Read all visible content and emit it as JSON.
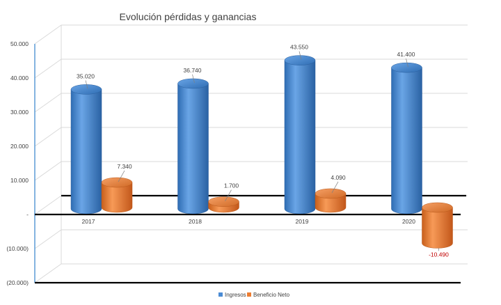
{
  "chart_data": {
    "type": "bar",
    "title": "Evolución pérdidas y ganancias",
    "categories": [
      "2017",
      "2018",
      "2019",
      "2020"
    ],
    "series": [
      {
        "name": "Ingresos",
        "values": [
          35020,
          36740,
          43550,
          41400
        ],
        "labels": [
          "35.020",
          "36.740",
          "43.550",
          "41.400"
        ],
        "color": "#4a8bd4"
      },
      {
        "name": "Beneficio Neto",
        "values": [
          7340,
          1700,
          4090,
          -10490
        ],
        "labels": [
          "7.340",
          "1.700",
          "4.090",
          "-10.490"
        ],
        "color": "#ed7d31"
      }
    ],
    "ylim": [
      -20000,
      50000
    ],
    "yticks": [
      50000,
      40000,
      30000,
      20000,
      10000,
      0,
      -10000,
      -20000
    ],
    "ytick_labels": [
      "50.000",
      "40.000",
      "30.000",
      "20.000",
      "10.000",
      "-",
      "(10.000)",
      "(20.000)"
    ],
    "negative_label_color": "#c00000",
    "grid": true,
    "legend_position": "bottom",
    "xlabel": "",
    "ylabel": ""
  }
}
